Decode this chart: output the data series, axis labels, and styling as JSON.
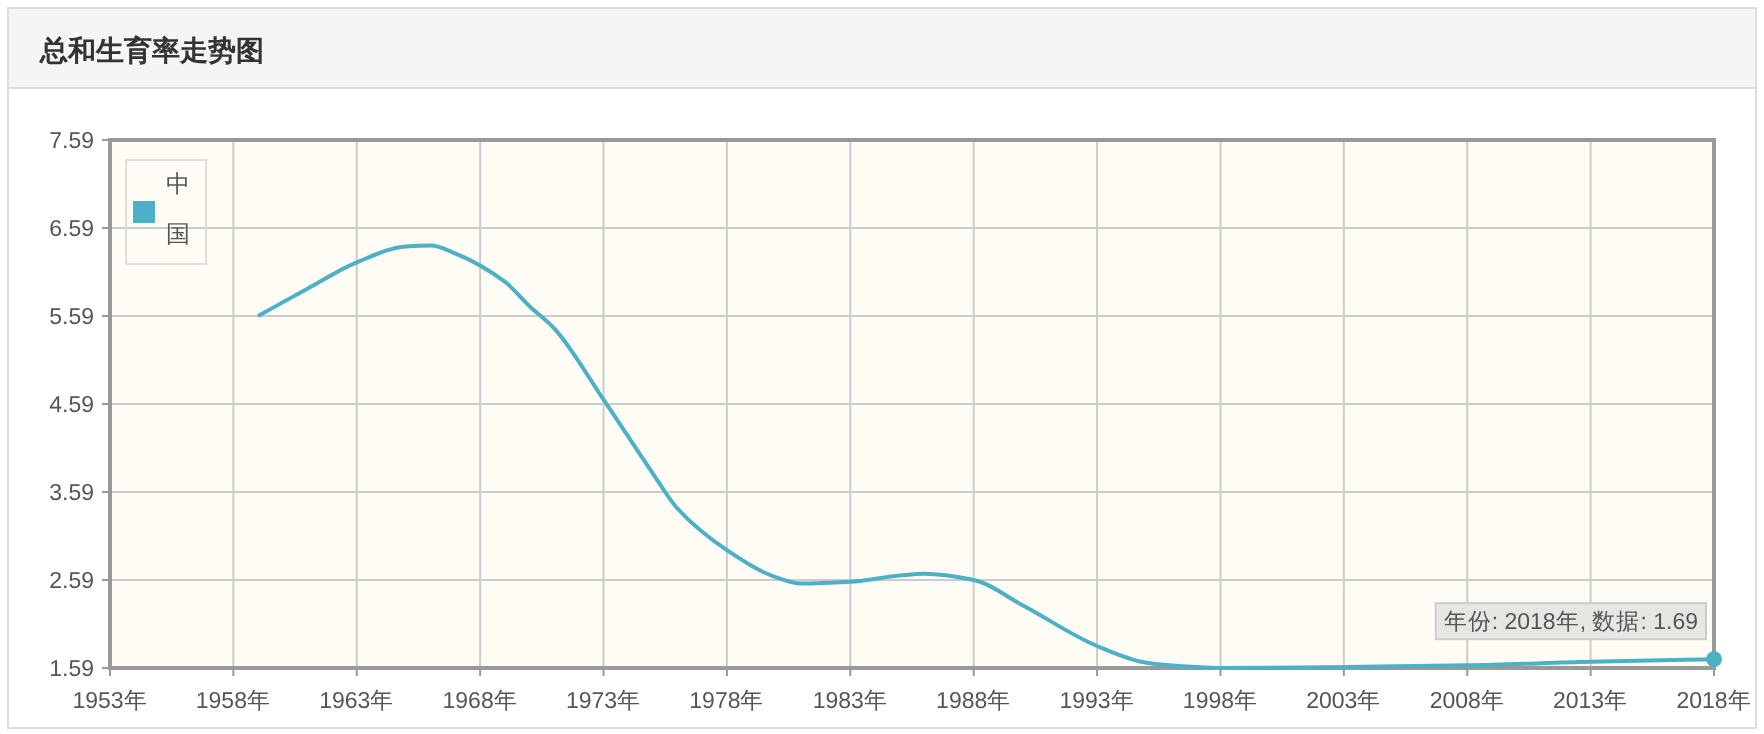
{
  "chart_data": {
    "type": "line",
    "title": "总和生育率走势图",
    "x": [
      1959,
      1961,
      1963,
      1965,
      1966,
      1967,
      1969,
      1970,
      1971,
      1973,
      1975,
      1976,
      1978,
      1980,
      1981,
      1983,
      1985,
      1986,
      1988,
      1990,
      1993,
      1995,
      1997,
      1998,
      2003,
      2008,
      2013,
      2018
    ],
    "series": [
      {
        "name": "中国",
        "color": "#4cb1c6",
        "values": [
          5.59,
          5.9,
          6.2,
          6.38,
          6.39,
          6.3,
          5.98,
          5.7,
          5.45,
          4.64,
          3.8,
          3.4,
          2.93,
          2.62,
          2.55,
          2.57,
          2.64,
          2.66,
          2.59,
          2.3,
          1.84,
          1.65,
          1.6,
          1.59,
          1.6,
          1.62,
          1.66,
          1.69
        ]
      }
    ],
    "xlim": [
      1953,
      2018
    ],
    "ylim": [
      1.59,
      7.59
    ],
    "xticks": [
      {
        "value": 1953,
        "label": "1953年"
      },
      {
        "value": 1958,
        "label": "1958年"
      },
      {
        "value": 1963,
        "label": "1963年"
      },
      {
        "value": 1968,
        "label": "1968年"
      },
      {
        "value": 1973,
        "label": "1973年"
      },
      {
        "value": 1978,
        "label": "1978年"
      },
      {
        "value": 1983,
        "label": "1983年"
      },
      {
        "value": 1988,
        "label": "1988年"
      },
      {
        "value": 1993,
        "label": "1993年"
      },
      {
        "value": 1998,
        "label": "1998年"
      },
      {
        "value": 2003,
        "label": "2003年"
      },
      {
        "value": 2008,
        "label": "2008年"
      },
      {
        "value": 2013,
        "label": "2013年"
      },
      {
        "value": 2018,
        "label": "2018年"
      }
    ],
    "yticks": [
      1.59,
      2.59,
      3.59,
      4.59,
      5.59,
      6.59,
      7.59
    ],
    "grid": true,
    "legend": "top left",
    "marker": "none",
    "line_style": "solid",
    "annotations": [
      {
        "text": "年份: 2018年, 数据: 1.69",
        "x": 2018,
        "y": 1.69
      }
    ]
  }
}
